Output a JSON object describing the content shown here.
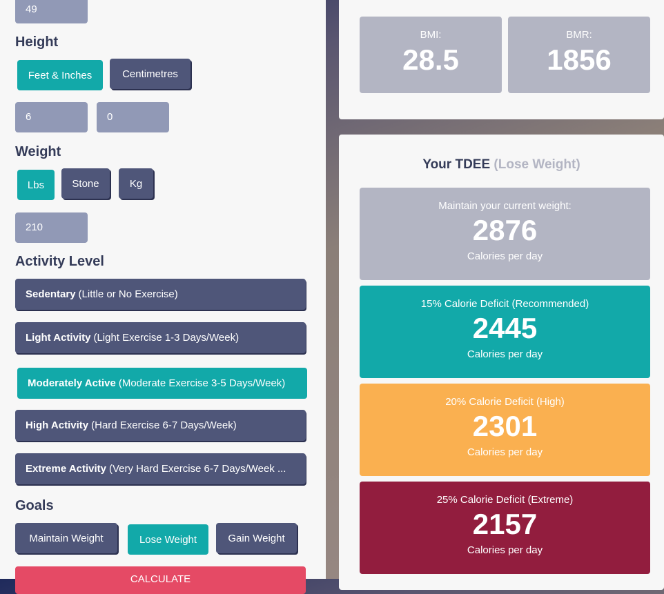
{
  "form": {
    "age_value": "49",
    "height": {
      "label": "Height",
      "units": [
        "Feet & Inches",
        "Centimetres"
      ],
      "selected": "Feet & Inches",
      "feet": "6",
      "inches": "0"
    },
    "weight": {
      "label": "Weight",
      "units": [
        "Lbs",
        "Stone",
        "Kg"
      ],
      "selected": "Lbs",
      "value": "210"
    },
    "activity": {
      "label": "Activity Level",
      "options": [
        {
          "name": "Sedentary",
          "desc": "(Little or No Exercise)"
        },
        {
          "name": "Light Activity",
          "desc": "(Light Exercise 1-3 Days/Week)"
        },
        {
          "name": "Moderately Active",
          "desc": "(Moderate Exercise 3-5 Days/Week)"
        },
        {
          "name": "High Activity",
          "desc": "(Hard Exercise 6-7 Days/Week)"
        },
        {
          "name": "Extreme Activity",
          "desc": "(Very Hard Exercise 6-7 Days/Week ..."
        }
      ],
      "selected": "Moderately Active"
    },
    "goals": {
      "label": "Goals",
      "options": [
        "Maintain Weight",
        "Lose Weight",
        "Gain Weight"
      ],
      "selected": "Lose Weight"
    },
    "calculate_label": "CALCULATE"
  },
  "results": {
    "bmi": {
      "label": "BMI:",
      "value": "28.5"
    },
    "bmr": {
      "label": "BMR:",
      "value": "1856"
    },
    "tdee_title": "Your TDEE",
    "tdee_goal": "(Lose Weight)",
    "cards": [
      {
        "label": "Maintain your current weight:",
        "value": "2876",
        "unit": "Calories per day",
        "color": "#b3b5c3"
      },
      {
        "label": "15% Calorie Deficit (Recommended)",
        "value": "2445",
        "unit": "Calories per day",
        "color": "#12a9a9"
      },
      {
        "label": "20% Calorie Deficit (High)",
        "value": "2301",
        "unit": "Calories per day",
        "color": "#fab050"
      },
      {
        "label": "25% Calorie Deficit (Extreme)",
        "value": "2157",
        "unit": "Calories per day",
        "color": "#921d3e"
      }
    ]
  }
}
